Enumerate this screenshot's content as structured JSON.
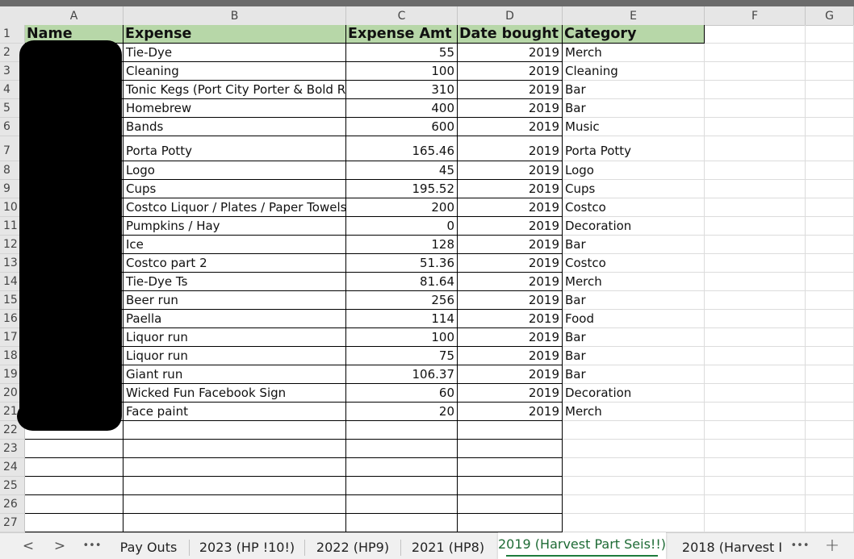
{
  "columns": [
    "A",
    "B",
    "C",
    "D",
    "E",
    "F",
    "G"
  ],
  "row_numbers": [
    "1",
    "2",
    "3",
    "4",
    "5",
    "6",
    "7",
    "8",
    "9",
    "10",
    "11",
    "12",
    "13",
    "14",
    "15",
    "16",
    "17",
    "18",
    "19",
    "20",
    "21",
    "22",
    "23",
    "24",
    "25",
    "26",
    "27"
  ],
  "headers": {
    "name": "Name",
    "expense": "Expense",
    "amount": "Expense Amt",
    "date": "Date bought",
    "category": "Category"
  },
  "rows": [
    {
      "expense": "Tie-Dye",
      "amount": "55",
      "date": "2019",
      "category": "Merch"
    },
    {
      "expense": "Cleaning",
      "amount": "100",
      "date": "2019",
      "category": "Cleaning"
    },
    {
      "expense": "Tonic Kegs (Port City Porter & Bold Ro",
      "amount": "310",
      "date": "2019",
      "category": "Bar"
    },
    {
      "expense": "Homebrew",
      "amount": "400",
      "date": "2019",
      "category": "Bar"
    },
    {
      "expense": "Bands",
      "amount": "600",
      "date": "2019",
      "category": "Music"
    },
    {
      "expense": "Porta Potty",
      "amount": "165.46",
      "date": "2019",
      "category": "Porta Potty"
    },
    {
      "expense": "Logo",
      "amount": "45",
      "date": "2019",
      "category": "Logo"
    },
    {
      "expense": "Cups",
      "amount": "195.52",
      "date": "2019",
      "category": "Cups"
    },
    {
      "expense": "Costco Liquor / Plates / Paper Towels",
      "amount": "200",
      "date": "2019",
      "category": "Costco"
    },
    {
      "expense": "Pumpkins / Hay",
      "amount": "0",
      "date": "2019",
      "category": "Decoration"
    },
    {
      "expense": "Ice",
      "amount": "128",
      "date": "2019",
      "category": "Bar"
    },
    {
      "expense": "Costco part 2",
      "amount": "51.36",
      "date": "2019",
      "category": "Costco"
    },
    {
      "expense": "Tie-Dye Ts",
      "amount": "81.64",
      "date": "2019",
      "category": "Merch"
    },
    {
      "expense": "Beer run",
      "amount": "256",
      "date": "2019",
      "category": "Bar"
    },
    {
      "expense": "Paella",
      "amount": "114",
      "date": "2019",
      "category": "Food"
    },
    {
      "expense": "Liquor run",
      "amount": "100",
      "date": "2019",
      "category": "Bar"
    },
    {
      "expense": "Liquor run",
      "amount": "75",
      "date": "2019",
      "category": "Bar"
    },
    {
      "expense": "Giant run",
      "amount": "106.37",
      "date": "2019",
      "category": "Bar"
    },
    {
      "expense": "Wicked Fun Facebook Sign",
      "amount": "60",
      "date": "2019",
      "category": "Decoration"
    },
    {
      "expense": "Face paint",
      "amount": "20",
      "date": "2019",
      "category": "Merch"
    }
  ],
  "nav": {
    "prev": "<",
    "next": ">",
    "more": "•••",
    "more_right": "•••",
    "add": "+"
  },
  "tabs": [
    {
      "label": "Pay Outs"
    },
    {
      "label": "2023 (HP !10!)"
    },
    {
      "label": "2022 (HP9)"
    },
    {
      "label": "2021 (HP8)"
    },
    {
      "label": "2019 (Harvest Part Seis!!)",
      "active": true
    },
    {
      "label": "2018 (Harvest I"
    }
  ],
  "colors": {
    "header_fill": "#b7d7a8",
    "active_tab": "#1e7b3c"
  }
}
